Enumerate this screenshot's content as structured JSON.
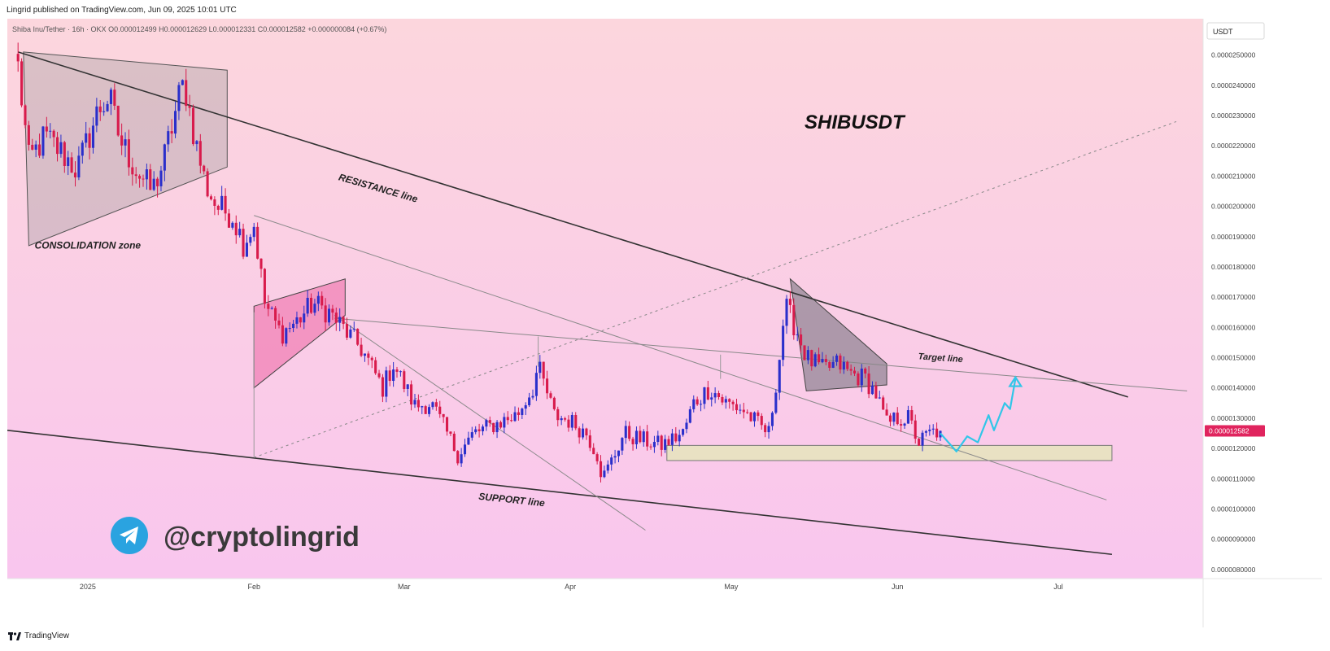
{
  "header": {
    "published": "Lingrid published on TradingView.com, Jun 09, 2025 10:01 UTC"
  },
  "footer": {
    "brand": "TradingView"
  },
  "colors": {
    "bg_top": "#fcd6dd",
    "bg_bottom": "#f9c6ee",
    "candle_up": "#2a2fcb",
    "candle_down": "#d81b4c",
    "zone_fill": "#e9e1c3",
    "arrow": "#31c6e8",
    "price_badge": "#e0245e",
    "telegram": "#2aa3e0"
  },
  "chart_data": {
    "type": "candlestick",
    "symbol_line": "Shiba Inu/Tether · 16h · OKX  O0.000012499  H0.000012629  L0.000012331  C0.000012582  +0.000000084 (+0.67%)",
    "title": "SHIBUSDT",
    "currency": "USDT",
    "last_price_label": "0.000012582",
    "ylim": [
      7.7e-06,
      2.62e-05
    ],
    "y_ticks": [
      "0.0000080000",
      "0.0000090000",
      "0.0000100000",
      "0.0000110000",
      "0.0000120000",
      "0.0000130000",
      "0.0000140000",
      "0.0000150000",
      "0.0000160000",
      "0.0000170000",
      "0.0000180000",
      "0.0000190000",
      "0.0000200000",
      "0.0000210000",
      "0.0000220000",
      "0.0000230000",
      "0.0000240000",
      "0.0000250000"
    ],
    "x_ticks": [
      {
        "label": "2025",
        "date": "2025-01-01"
      },
      {
        "label": "Feb",
        "date": "2025-02-01"
      },
      {
        "label": "Mar",
        "date": "2025-03-01"
      },
      {
        "label": "Apr",
        "date": "2025-04-01"
      },
      {
        "label": "May",
        "date": "2025-05-01"
      },
      {
        "label": "Jun",
        "date": "2025-06-01"
      },
      {
        "label": "Jul",
        "date": "2025-07-01"
      }
    ],
    "xlim": [
      "2024-12-17",
      "2025-07-28"
    ],
    "close_path": [
      {
        "date": "2024-12-19",
        "close": 2.46e-05
      },
      {
        "date": "2024-12-21",
        "close": 2.15e-05
      },
      {
        "date": "2024-12-24",
        "close": 2.23e-05
      },
      {
        "date": "2024-12-27",
        "close": 2.18e-05
      },
      {
        "date": "2024-12-30",
        "close": 2.12e-05
      },
      {
        "date": "2025-01-03",
        "close": 2.32e-05
      },
      {
        "date": "2025-01-05",
        "close": 2.36e-05
      },
      {
        "date": "2025-01-07",
        "close": 2.22e-05
      },
      {
        "date": "2025-01-10",
        "close": 2.12e-05
      },
      {
        "date": "2025-01-13",
        "close": 2.05e-05
      },
      {
        "date": "2025-01-15",
        "close": 2.14e-05
      },
      {
        "date": "2025-01-18",
        "close": 2.36e-05
      },
      {
        "date": "2025-01-19",
        "close": 2.41e-05
      },
      {
        "date": "2025-01-21",
        "close": 2.22e-05
      },
      {
        "date": "2025-01-23",
        "close": 2.07e-05
      },
      {
        "date": "2025-01-25",
        "close": 2e-05
      },
      {
        "date": "2025-01-28",
        "close": 1.97e-05
      },
      {
        "date": "2025-01-30",
        "close": 1.88e-05
      },
      {
        "date": "2025-02-01",
        "close": 1.94e-05
      },
      {
        "date": "2025-02-03",
        "close": 1.68e-05
      },
      {
        "date": "2025-02-06",
        "close": 1.58e-05
      },
      {
        "date": "2025-02-09",
        "close": 1.62e-05
      },
      {
        "date": "2025-02-12",
        "close": 1.68e-05
      },
      {
        "date": "2025-02-15",
        "close": 1.65e-05
      },
      {
        "date": "2025-02-18",
        "close": 1.59e-05
      },
      {
        "date": "2025-02-21",
        "close": 1.53e-05
      },
      {
        "date": "2025-02-25",
        "close": 1.4e-05
      },
      {
        "date": "2025-02-27",
        "close": 1.48e-05
      },
      {
        "date": "2025-03-03",
        "close": 1.34e-05
      },
      {
        "date": "2025-03-06",
        "close": 1.35e-05
      },
      {
        "date": "2025-03-09",
        "close": 1.25e-05
      },
      {
        "date": "2025-03-11",
        "close": 1.18e-05
      },
      {
        "date": "2025-03-14",
        "close": 1.25e-05
      },
      {
        "date": "2025-03-18",
        "close": 1.28e-05
      },
      {
        "date": "2025-03-22",
        "close": 1.31e-05
      },
      {
        "date": "2025-03-25",
        "close": 1.4e-05
      },
      {
        "date": "2025-03-26",
        "close": 1.47e-05
      },
      {
        "date": "2025-03-29",
        "close": 1.31e-05
      },
      {
        "date": "2025-04-01",
        "close": 1.29e-05
      },
      {
        "date": "2025-04-04",
        "close": 1.25e-05
      },
      {
        "date": "2025-04-06",
        "close": 1.18e-05
      },
      {
        "date": "2025-04-07",
        "close": 1.1e-05
      },
      {
        "date": "2025-04-09",
        "close": 1.17e-05
      },
      {
        "date": "2025-04-11",
        "close": 1.25e-05
      },
      {
        "date": "2025-04-14",
        "close": 1.23e-05
      },
      {
        "date": "2025-04-18",
        "close": 1.21e-05
      },
      {
        "date": "2025-04-22",
        "close": 1.25e-05
      },
      {
        "date": "2025-04-24",
        "close": 1.35e-05
      },
      {
        "date": "2025-04-27",
        "close": 1.4e-05
      },
      {
        "date": "2025-04-30",
        "close": 1.35e-05
      },
      {
        "date": "2025-05-03",
        "close": 1.33e-05
      },
      {
        "date": "2025-05-06",
        "close": 1.28e-05
      },
      {
        "date": "2025-05-08",
        "close": 1.25e-05
      },
      {
        "date": "2025-05-10",
        "close": 1.5e-05
      },
      {
        "date": "2025-05-11",
        "close": 1.67e-05
      },
      {
        "date": "2025-05-13",
        "close": 1.6e-05
      },
      {
        "date": "2025-05-15",
        "close": 1.5e-05
      },
      {
        "date": "2025-05-18",
        "close": 1.46e-05
      },
      {
        "date": "2025-05-21",
        "close": 1.48e-05
      },
      {
        "date": "2025-05-23",
        "close": 1.45e-05
      },
      {
        "date": "2025-05-26",
        "close": 1.43e-05
      },
      {
        "date": "2025-05-28",
        "close": 1.38e-05
      },
      {
        "date": "2025-05-30",
        "close": 1.28e-05
      },
      {
        "date": "2025-06-01",
        "close": 1.3e-05
      },
      {
        "date": "2025-06-03",
        "close": 1.3e-05
      },
      {
        "date": "2025-06-05",
        "close": 1.22e-05
      },
      {
        "date": "2025-06-07",
        "close": 1.25e-05
      },
      {
        "date": "2025-06-09",
        "close": 1.2582e-05
      }
    ],
    "annotations": [
      {
        "type": "text",
        "text": "RESISTANCE line",
        "date": "2025-02-24",
        "price": 2.05e-05,
        "rotate": 16
      },
      {
        "type": "text",
        "text": "SUPPORT line",
        "date": "2025-03-21",
        "price": 1.02e-05,
        "rotate": 6
      },
      {
        "type": "text",
        "text": "CONSOLIDATION zone",
        "date": "2025-01-01",
        "price": 1.86e-05,
        "rotate": 0
      },
      {
        "type": "text",
        "text": "Target line",
        "date": "2025-06-09",
        "price": 1.49e-05,
        "rotate": 4
      },
      {
        "type": "text",
        "text": "@cryptolingrid",
        "kind": "watermark"
      }
    ],
    "lines": {
      "resistance": [
        [
          "2024-12-19",
          2.51e-05
        ],
        [
          "2025-07-14",
          1.37e-05
        ]
      ],
      "support": [
        [
          "2024-12-17",
          1.26e-05
        ],
        [
          "2025-07-11",
          8.5e-06
        ]
      ],
      "target": [
        [
          "2025-02-16",
          1.63e-05
        ],
        [
          "2025-07-25",
          1.39e-05
        ]
      ],
      "dotted_trend": [
        [
          "2025-02-01",
          1.17e-05
        ],
        [
          "2025-07-23",
          2.28e-05
        ]
      ],
      "inner_channel_top": [
        [
          "2025-02-01",
          1.97e-05
        ],
        [
          "2025-07-10",
          1.03e-05
        ]
      ],
      "inner_diag": [
        [
          "2025-02-16",
          1.64e-05
        ],
        [
          "2025-04-15",
          9.3e-06
        ]
      ],
      "peak_mar": [
        [
          "2025-03-26",
          1.47e-05
        ],
        [
          "2025-03-26",
          1.57e-05
        ]
      ],
      "peak_apr": [
        [
          "2025-04-29",
          1.43e-05
        ],
        [
          "2025-04-29",
          1.51e-05
        ]
      ],
      "vert_feb": [
        [
          "2025-02-01",
          1.65e-05
        ],
        [
          "2025-02-01",
          1.17e-05
        ]
      ]
    },
    "shapes": {
      "consolidation": [
        [
          "2024-12-20",
          2.51e-05
        ],
        [
          "2025-01-27",
          2.45e-05
        ],
        [
          "2025-01-27",
          2.13e-05
        ],
        [
          "2024-12-21",
          1.87e-05
        ]
      ],
      "pink_flag": [
        [
          "2025-02-01",
          1.67e-05
        ],
        [
          "2025-02-18",
          1.76e-05
        ],
        [
          "2025-02-18",
          1.64e-05
        ],
        [
          "2025-02-01",
          1.4e-05
        ]
      ],
      "grey_flag": [
        [
          "2025-05-12",
          1.76e-05
        ],
        [
          "2025-05-30",
          1.48e-05
        ],
        [
          "2025-05-30",
          1.41e-05
        ],
        [
          "2025-05-15",
          1.39e-05
        ]
      ],
      "support_zone": {
        "from": "2025-04-19",
        "to": "2025-07-11",
        "low": 1.16e-05,
        "high": 1.21e-05
      }
    },
    "projection": [
      [
        "2025-06-09",
        1.25e-05
      ],
      [
        "2025-06-12",
        1.19e-05
      ],
      [
        "2025-06-14",
        1.24e-05
      ],
      [
        "2025-06-16",
        1.22e-05
      ],
      [
        "2025-06-18",
        1.31e-05
      ],
      [
        "2025-06-19",
        1.26e-05
      ],
      [
        "2025-06-21",
        1.35e-05
      ],
      [
        "2025-06-22",
        1.33e-05
      ],
      [
        "2025-06-23",
        1.43e-05
      ]
    ]
  }
}
